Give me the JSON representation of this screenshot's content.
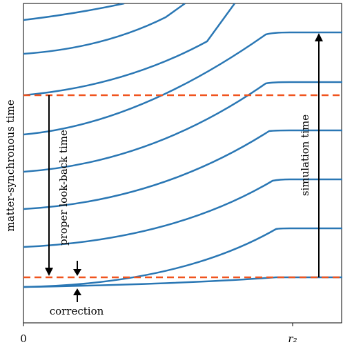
{
  "labels": {
    "y_axis": "matter-synchronous time",
    "look_back": "proper look-back time",
    "simulation": "simulation time",
    "correction": "correction",
    "tick_zero": "0",
    "tick_r2": "r₂"
  },
  "colors": {
    "curves": "#2a77b4",
    "dashed": "#f0541e",
    "text": "#000000"
  }
}
